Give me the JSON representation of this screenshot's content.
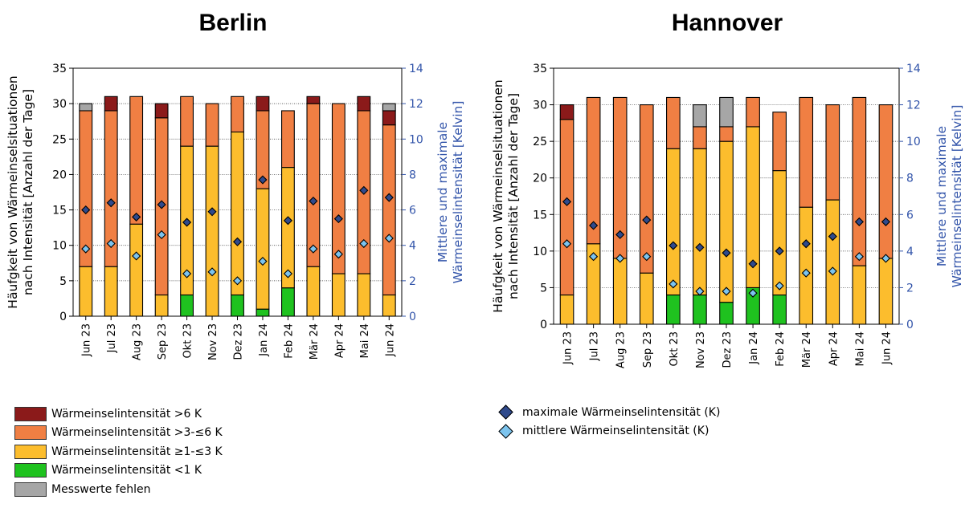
{
  "colors": {
    "gt6": "#8b1a1a",
    "gt3le6": "#f07f43",
    "ge1le3": "#fcbd2d",
    "lt1": "#1fc21f",
    "missing": "#a6a6a6",
    "max_marker": "#2f4a8c",
    "mean_marker": "#7cc4ee",
    "right_axis": "#3355aa"
  },
  "legend_left": [
    {
      "key": "gt6",
      "label": "Wärmeinselintensität >6 K"
    },
    {
      "key": "gt3le6",
      "label": "Wärmeinselintensität >3-≤6 K"
    },
    {
      "key": "ge1le3",
      "label": "Wärmeinselintensität ≥1-≤3 K"
    },
    {
      "key": "lt1",
      "label": "Wärmeinselintensität <1 K"
    },
    {
      "key": "missing",
      "label": "Messwerte fehlen"
    }
  ],
  "legend_right": [
    {
      "key": "max_marker",
      "label": "maximale Wärmeinselintensität (K)"
    },
    {
      "key": "mean_marker",
      "label": "mittlere Wärmeinselintensität (K)"
    }
  ],
  "chart_data": [
    {
      "type": "bar",
      "stacked": true,
      "title": "Berlin",
      "ylabel": "Häufgkeit von Wärmeinselsituationen\nnach Intensität [Anzahl der Tage]",
      "y2label": "Mittlere und maximale\nWärmeinselintensität [Kelvin]",
      "ylim": [
        0,
        35
      ],
      "y2lim": [
        0,
        14
      ],
      "yticks": [
        0,
        5,
        10,
        15,
        20,
        25,
        30,
        35
      ],
      "y2ticks": [
        0,
        2,
        4,
        6,
        8,
        10,
        12,
        14
      ],
      "categories": [
        "Jun 23",
        "Jul 23",
        "Aug 23",
        "Sep 23",
        "Okt 23",
        "Nov 23",
        "Dez 23",
        "Jan 24",
        "Feb 24",
        "Mär 24",
        "Apr 24",
        "Mai 24",
        "Jun 24"
      ],
      "series": [
        {
          "key": "lt1",
          "values": [
            0,
            0,
            0,
            0,
            3,
            0,
            3,
            1,
            4,
            0,
            0,
            0,
            0
          ]
        },
        {
          "key": "ge1le3",
          "values": [
            7,
            7,
            13,
            3,
            21,
            24,
            23,
            17,
            17,
            7,
            6,
            6,
            3
          ]
        },
        {
          "key": "gt3le6",
          "values": [
            22,
            22,
            18,
            25,
            7,
            6,
            5,
            11,
            8,
            23,
            24,
            23,
            24
          ]
        },
        {
          "key": "gt6",
          "values": [
            0,
            2,
            0,
            2,
            0,
            0,
            0,
            2,
            0,
            1,
            0,
            2,
            2
          ]
        },
        {
          "key": "missing",
          "values": [
            1,
            0,
            0,
            0,
            0,
            0,
            0,
            0,
            0,
            0,
            0,
            0,
            1
          ]
        }
      ],
      "max_intensity": [
        6.0,
        6.4,
        5.6,
        6.3,
        5.3,
        5.9,
        4.2,
        7.7,
        5.4,
        6.5,
        5.5,
        7.1,
        6.7
      ],
      "mean_intensity": [
        3.8,
        4.1,
        3.4,
        4.6,
        2.4,
        2.5,
        2.0,
        3.1,
        2.4,
        3.8,
        3.5,
        4.1,
        4.4
      ]
    },
    {
      "type": "bar",
      "stacked": true,
      "title": "Hannover",
      "ylabel": "Häufgkeit von Wärmeinselsituationen\nnach Intensität [Anzahl der Tage]",
      "y2label": "Mittlere und maximale\nWärmeinselintensität [Kelvin]",
      "ylim": [
        0,
        35
      ],
      "y2lim": [
        0,
        14
      ],
      "yticks": [
        0,
        5,
        10,
        15,
        20,
        25,
        30,
        35
      ],
      "y2ticks": [
        0,
        2,
        4,
        6,
        8,
        10,
        12,
        14
      ],
      "categories": [
        "Jun 23",
        "Jul 23",
        "Aug 23",
        "Sep 23",
        "Okt 23",
        "Nov 23",
        "Dez 23",
        "Jan 24",
        "Feb 24",
        "Mär 24",
        "Apr 24",
        "Mai 24",
        "Jun 24"
      ],
      "series": [
        {
          "key": "lt1",
          "values": [
            0,
            0,
            0,
            0,
            4,
            4,
            3,
            5,
            4,
            0,
            0,
            0,
            0
          ]
        },
        {
          "key": "ge1le3",
          "values": [
            4,
            11,
            9,
            7,
            20,
            20,
            22,
            22,
            17,
            16,
            17,
            8,
            9
          ]
        },
        {
          "key": "gt3le6",
          "values": [
            24,
            20,
            22,
            23,
            7,
            3,
            2,
            4,
            8,
            15,
            13,
            23,
            21
          ]
        },
        {
          "key": "gt6",
          "values": [
            2,
            0,
            0,
            0,
            0,
            0,
            0,
            0,
            0,
            0,
            0,
            0,
            0
          ]
        },
        {
          "key": "missing",
          "values": [
            0,
            0,
            0,
            0,
            0,
            3,
            4,
            0,
            0,
            0,
            0,
            0,
            0
          ]
        }
      ],
      "max_intensity": [
        6.7,
        5.4,
        4.9,
        5.7,
        4.3,
        4.2,
        3.9,
        3.3,
        4.0,
        4.4,
        4.8,
        5.6,
        5.6
      ],
      "mean_intensity": [
        4.4,
        3.7,
        3.6,
        3.7,
        2.2,
        1.8,
        1.8,
        1.7,
        2.1,
        2.8,
        2.9,
        3.7,
        3.6
      ]
    }
  ]
}
